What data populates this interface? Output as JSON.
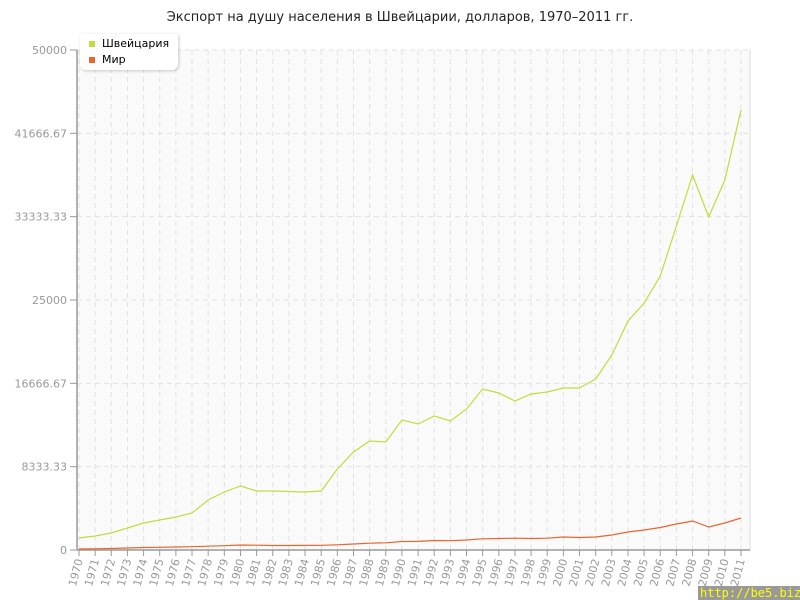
{
  "chart_data": {
    "type": "line",
    "title": "Экспорт на душу населения в Швейцарии, долларов, 1970–2011 гг.",
    "x": [
      1970,
      1971,
      1972,
      1973,
      1974,
      1975,
      1976,
      1977,
      1978,
      1979,
      1980,
      1981,
      1982,
      1983,
      1984,
      1985,
      1986,
      1987,
      1988,
      1989,
      1990,
      1991,
      1992,
      1993,
      1994,
      1995,
      1996,
      1997,
      1998,
      1999,
      2000,
      2001,
      2002,
      2003,
      2004,
      2005,
      2006,
      2007,
      2008,
      2009,
      2010,
      2011
    ],
    "series": [
      {
        "name": "Швейцария",
        "color": "#c3dc3c",
        "values": [
          1200,
          1400,
          1700,
          2200,
          2700,
          3000,
          3300,
          3700,
          5000,
          5800,
          6400,
          5900,
          5900,
          5850,
          5800,
          5900,
          8100,
          9800,
          10900,
          10800,
          13000,
          12600,
          13400,
          12900,
          14100,
          16100,
          15700,
          14900,
          15600,
          15800,
          16200,
          16200,
          17100,
          19500,
          22900,
          24700,
          27400,
          32400,
          37500,
          33300,
          37000,
          44000
        ]
      },
      {
        "name": "Мир",
        "color": "#e8652e",
        "values": [
          100,
          120,
          150,
          200,
          250,
          270,
          300,
          330,
          380,
          430,
          500,
          480,
          450,
          450,
          460,
          470,
          520,
          600,
          680,
          720,
          850,
          860,
          950,
          930,
          1000,
          1120,
          1150,
          1180,
          1150,
          1180,
          1300,
          1250,
          1300,
          1500,
          1800,
          2000,
          2250,
          2600,
          2900,
          2300,
          2700,
          3200
        ]
      }
    ],
    "yticks": [
      "0",
      "8333.33",
      "16666.67",
      "25000",
      "33333.33",
      "41666.67",
      "50000"
    ],
    "ylim": [
      0,
      50000
    ],
    "xlim": [
      1970,
      2011
    ],
    "grid": true,
    "legend_position": "top-left"
  },
  "watermark": "http://be5.biz/"
}
